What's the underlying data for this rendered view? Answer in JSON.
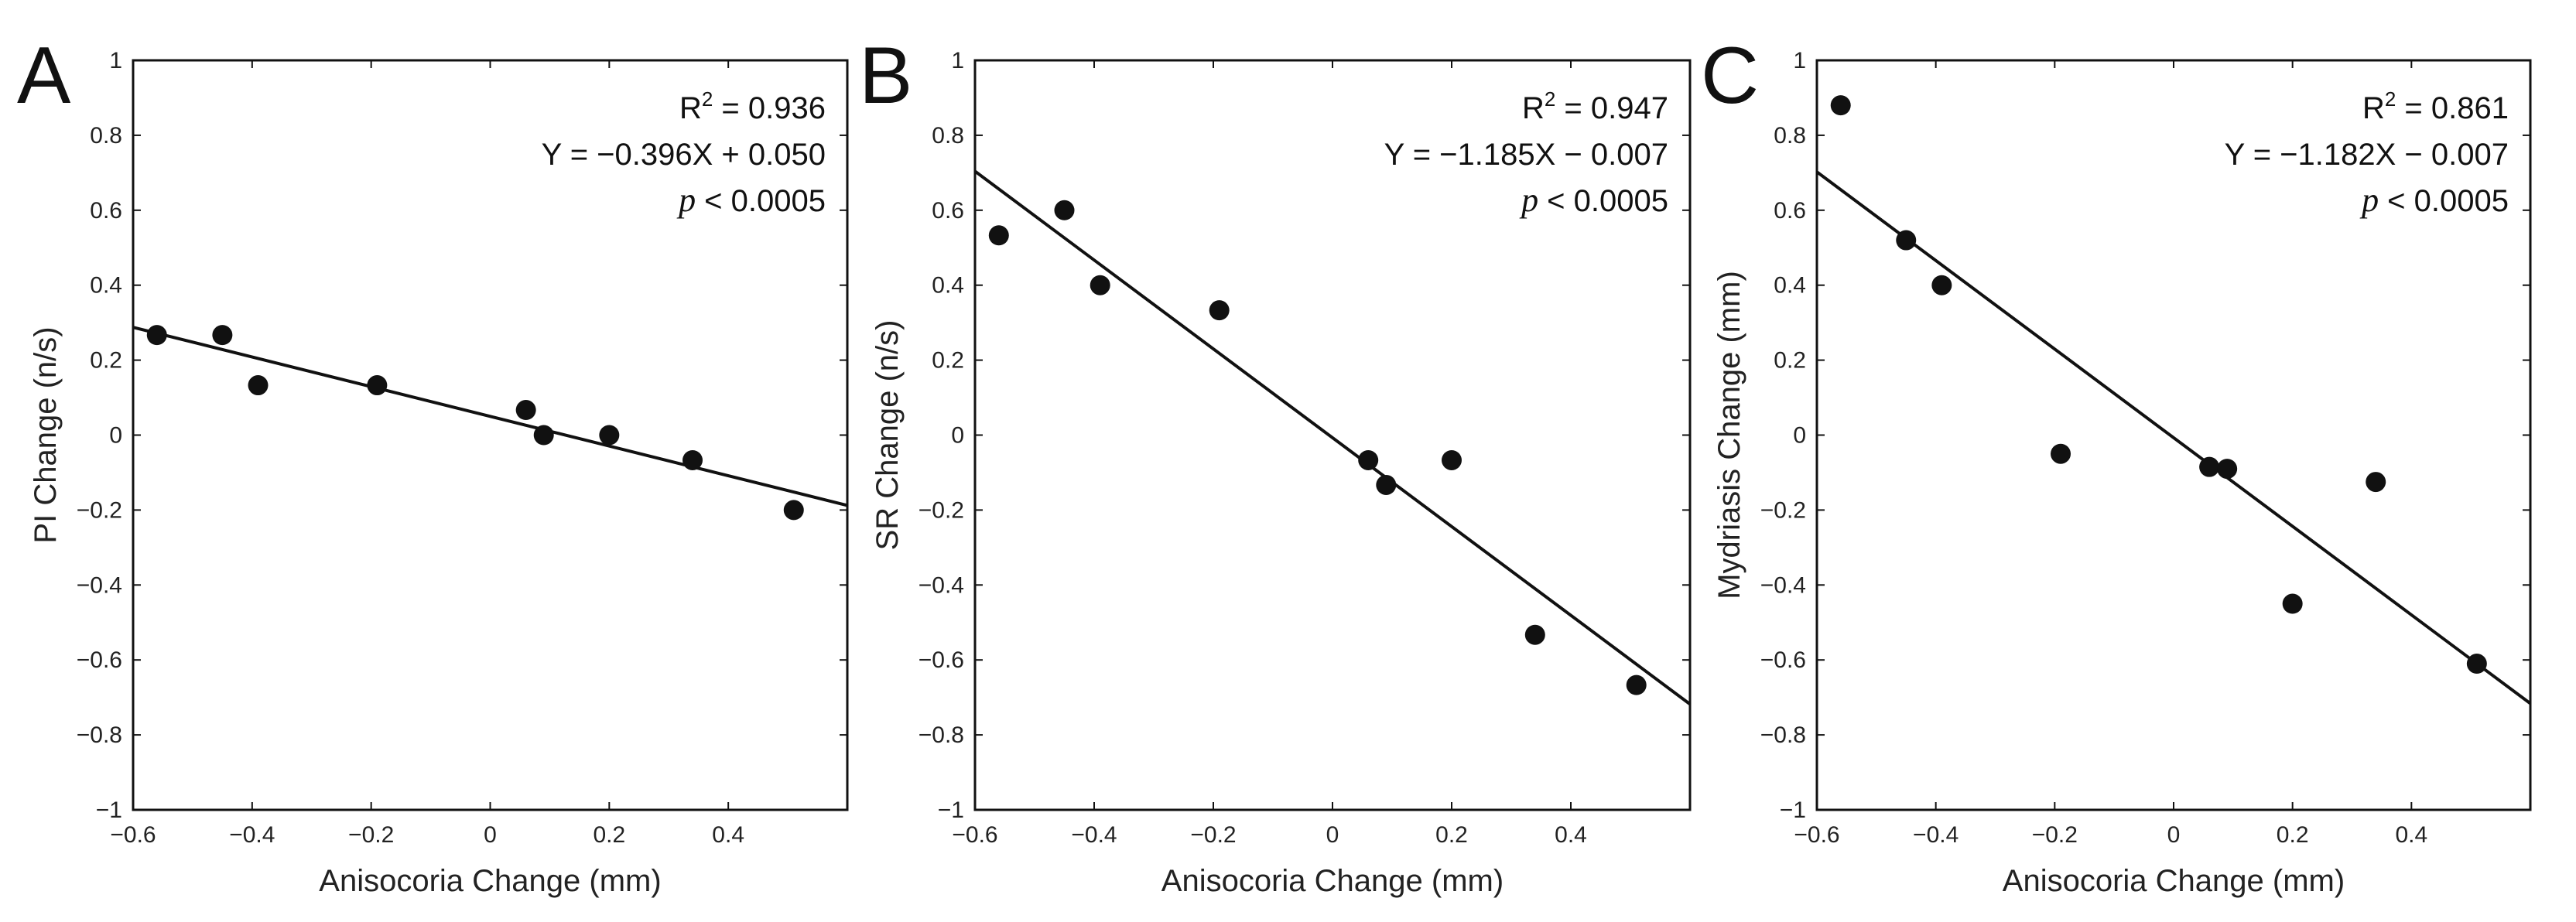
{
  "chart_data": [
    {
      "type": "scatter",
      "panel_label": "A",
      "title": "",
      "xlabel": "Anisocoria Change (mm)",
      "ylabel": "PI Change (n/s)",
      "xlim": [
        -0.6,
        0.6
      ],
      "ylim": [
        -1,
        1
      ],
      "xticks": [
        -0.6,
        -0.4,
        -0.2,
        0,
        0.2,
        0.4
      ],
      "xtick_labels": [
        "−0.6",
        "−0.4",
        "−0.2",
        "0",
        "0.2",
        "0.4"
      ],
      "yticks": [
        -1,
        -0.8,
        -0.6,
        -0.4,
        -0.2,
        0,
        0.2,
        0.4,
        0.6,
        0.8,
        1
      ],
      "ytick_labels": [
        "−1",
        "−0.8",
        "−0.6",
        "−0.4",
        "−0.2",
        "0",
        "0.2",
        "0.4",
        "0.6",
        "0.8",
        "1"
      ],
      "points": [
        {
          "x": -0.56,
          "y": 0.267
        },
        {
          "x": -0.45,
          "y": 0.267
        },
        {
          "x": -0.39,
          "y": 0.133
        },
        {
          "x": -0.19,
          "y": 0.133
        },
        {
          "x": 0.06,
          "y": 0.067
        },
        {
          "x": 0.09,
          "y": 0.0
        },
        {
          "x": 0.2,
          "y": 0.0
        },
        {
          "x": 0.34,
          "y": -0.067
        },
        {
          "x": 0.51,
          "y": -0.2
        }
      ],
      "fit": {
        "slope": -0.396,
        "intercept": 0.05
      },
      "annotation": {
        "r2_label": "R",
        "r2_sup": "2",
        "r2_value": " = 0.936",
        "equation": "Y = −0.396X + 0.050",
        "p_symbol": "p",
        "p_value": " < 0.0005"
      }
    },
    {
      "type": "scatter",
      "panel_label": "B",
      "title": "",
      "xlabel": "Anisocoria Change (mm)",
      "ylabel": "SR Change (n/s)",
      "xlim": [
        -0.6,
        0.6
      ],
      "ylim": [
        -1,
        1
      ],
      "xticks": [
        -0.6,
        -0.4,
        -0.2,
        0,
        0.2,
        0.4
      ],
      "xtick_labels": [
        "−0.6",
        "−0.4",
        "−0.2",
        "0",
        "0.2",
        "0.4"
      ],
      "yticks": [
        -1,
        -0.8,
        -0.6,
        -0.4,
        -0.2,
        0,
        0.2,
        0.4,
        0.6,
        0.8,
        1
      ],
      "ytick_labels": [
        "−1",
        "−0.8",
        "−0.6",
        "−0.4",
        "−0.2",
        "0",
        "0.2",
        "0.4",
        "0.6",
        "0.8",
        "1"
      ],
      "points": [
        {
          "x": -0.56,
          "y": 0.533
        },
        {
          "x": -0.45,
          "y": 0.6
        },
        {
          "x": -0.39,
          "y": 0.4
        },
        {
          "x": -0.19,
          "y": 0.333
        },
        {
          "x": 0.06,
          "y": -0.067
        },
        {
          "x": 0.09,
          "y": -0.133
        },
        {
          "x": 0.2,
          "y": -0.067
        },
        {
          "x": 0.34,
          "y": -0.533
        },
        {
          "x": 0.51,
          "y": -0.667
        }
      ],
      "fit": {
        "slope": -1.185,
        "intercept": -0.007
      },
      "annotation": {
        "r2_label": "R",
        "r2_sup": "2",
        "r2_value": " = 0.947",
        "equation": "Y = −1.185X − 0.007",
        "p_symbol": "p",
        "p_value": " < 0.0005"
      }
    },
    {
      "type": "scatter",
      "panel_label": "C",
      "title": "",
      "xlabel": "Anisocoria Change (mm)",
      "ylabel": "Mydriasis Change (mm)",
      "xlim": [
        -0.6,
        0.6
      ],
      "ylim": [
        -1,
        1
      ],
      "xticks": [
        -0.6,
        -0.4,
        -0.2,
        0,
        0.2,
        0.4
      ],
      "xtick_labels": [
        "−0.6",
        "−0.4",
        "−0.2",
        "0",
        "0.2",
        "0.4"
      ],
      "yticks": [
        -1,
        -0.8,
        -0.6,
        -0.4,
        -0.2,
        0,
        0.2,
        0.4,
        0.6,
        0.8,
        1
      ],
      "ytick_labels": [
        "−1",
        "−0.8",
        "−0.6",
        "−0.4",
        "−0.2",
        "0",
        "0.2",
        "0.4",
        "0.6",
        "0.8",
        "1"
      ],
      "points": [
        {
          "x": -0.56,
          "y": 0.88
        },
        {
          "x": -0.45,
          "y": 0.52
        },
        {
          "x": -0.39,
          "y": 0.4
        },
        {
          "x": -0.19,
          "y": -0.05
        },
        {
          "x": 0.06,
          "y": -0.085
        },
        {
          "x": 0.09,
          "y": -0.09
        },
        {
          "x": 0.2,
          "y": -0.45
        },
        {
          "x": 0.34,
          "y": -0.125
        },
        {
          "x": 0.51,
          "y": -0.61
        }
      ],
      "fit": {
        "slope": -1.182,
        "intercept": -0.007
      },
      "annotation": {
        "r2_label": "R",
        "r2_sup": "2",
        "r2_value": " = 0.861",
        "equation": "Y = −1.182X − 0.007",
        "p_symbol": "p",
        "p_value": " < 0.0005"
      }
    }
  ]
}
